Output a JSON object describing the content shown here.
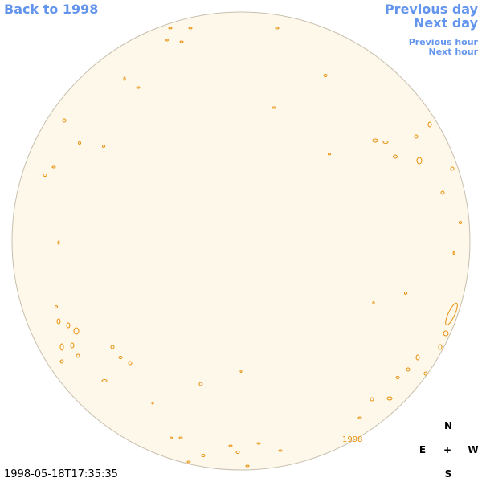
{
  "nav": {
    "back": "Back to 1998",
    "previous_day": "Previous day",
    "next_day": "Next day",
    "previous_hour": "Previous hour",
    "next_hour": "Next hour"
  },
  "timestamp": "1998-05-18T17:35:35",
  "marker": "1998",
  "compass": {
    "north": "N",
    "east": "E",
    "center": "+",
    "west": "W",
    "south": "S"
  }
}
